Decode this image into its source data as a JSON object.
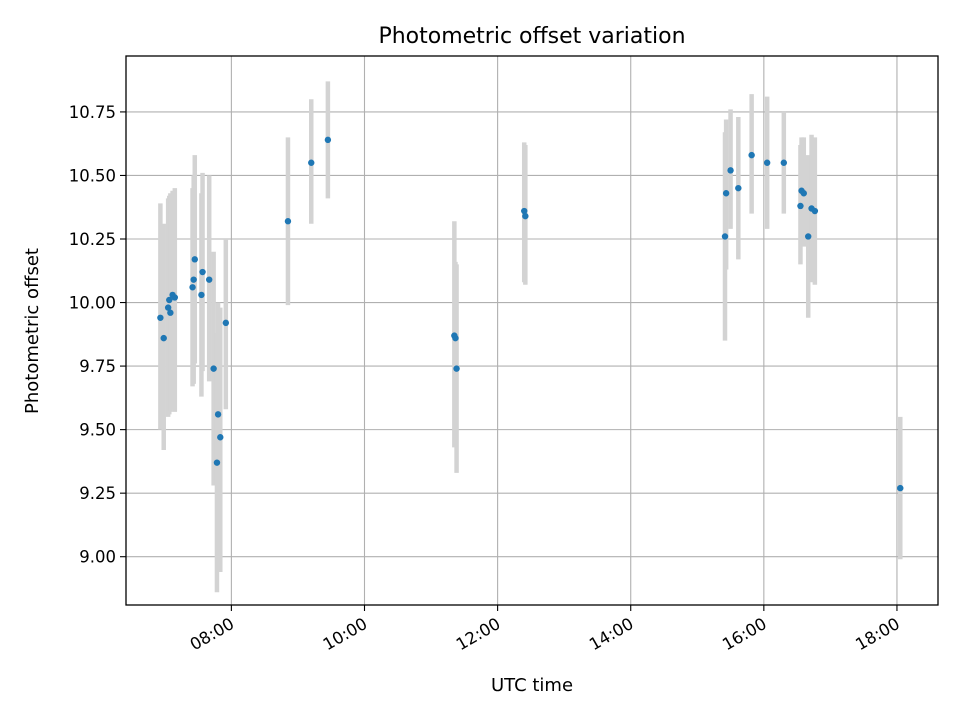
{
  "chart_data": {
    "type": "scatter",
    "title": "Photometric offset variation",
    "xlabel": "UTC time",
    "ylabel": "Photometric offset",
    "x_ticks": [
      "08:00",
      "10:00",
      "12:00",
      "14:00",
      "16:00",
      "18:00"
    ],
    "y_ticks": [
      "9.00",
      "9.25",
      "9.50",
      "9.75",
      "10.00",
      "10.25",
      "10.50",
      "10.75"
    ],
    "xlim": [
      "06:25",
      "18:37"
    ],
    "ylim": [
      8.81,
      10.97
    ],
    "grid": true,
    "colors": {
      "points": "#1f77b4",
      "error_bars": "#d3d3d3"
    },
    "series": [
      {
        "points": [
          {
            "x": "06:56",
            "y": 9.94,
            "err_low": 9.5,
            "err_high": 10.39
          },
          {
            "x": "06:59",
            "y": 9.86,
            "err_low": 9.42,
            "err_high": 10.31
          },
          {
            "x": "07:03",
            "y": 9.98,
            "err_low": 9.55,
            "err_high": 10.41
          },
          {
            "x": "07:04",
            "y": 10.01,
            "err_low": 9.56,
            "err_high": 10.42
          },
          {
            "x": "07:05",
            "y": 9.96,
            "err_low": 9.57,
            "err_high": 10.43
          },
          {
            "x": "07:07",
            "y": 10.03,
            "err_low": 9.58,
            "err_high": 10.44
          },
          {
            "x": "07:09",
            "y": 10.02,
            "err_low": 9.57,
            "err_high": 10.45
          },
          {
            "x": "07:25",
            "y": 10.06,
            "err_low": 9.67,
            "err_high": 10.45
          },
          {
            "x": "07:26",
            "y": 10.09,
            "err_low": 9.68,
            "err_high": 10.5
          },
          {
            "x": "07:27",
            "y": 10.17,
            "err_low": 9.76,
            "err_high": 10.58
          },
          {
            "x": "07:33",
            "y": 10.03,
            "err_low": 9.63,
            "err_high": 10.43
          },
          {
            "x": "07:34",
            "y": 10.12,
            "err_low": 9.73,
            "err_high": 10.51
          },
          {
            "x": "07:40",
            "y": 10.09,
            "err_low": 9.69,
            "err_high": 10.5
          },
          {
            "x": "07:44",
            "y": 9.74,
            "err_low": 9.28,
            "err_high": 10.2
          },
          {
            "x": "07:47",
            "y": 9.37,
            "err_low": 8.86,
            "err_high": 9.88
          },
          {
            "x": "07:48",
            "y": 9.56,
            "err_low": 9.12,
            "err_high": 10.0
          },
          {
            "x": "07:50",
            "y": 9.47,
            "err_low": 8.94,
            "err_high": 9.98
          },
          {
            "x": "07:55",
            "y": 9.92,
            "err_low": 9.58,
            "err_high": 10.25
          },
          {
            "x": "08:51",
            "y": 10.32,
            "err_low": 9.99,
            "err_high": 10.65
          },
          {
            "x": "09:12",
            "y": 10.55,
            "err_low": 10.31,
            "err_high": 10.8
          },
          {
            "x": "09:27",
            "y": 10.64,
            "err_low": 10.41,
            "err_high": 10.87
          },
          {
            "x": "11:21",
            "y": 9.87,
            "err_low": 9.43,
            "err_high": 10.32
          },
          {
            "x": "11:22",
            "y": 9.86,
            "err_low": 9.56,
            "err_high": 10.16
          },
          {
            "x": "11:23",
            "y": 9.74,
            "err_low": 9.33,
            "err_high": 10.15
          },
          {
            "x": "12:24",
            "y": 10.36,
            "err_low": 10.08,
            "err_high": 10.63
          },
          {
            "x": "12:25",
            "y": 10.34,
            "err_low": 10.07,
            "err_high": 10.62
          },
          {
            "x": "15:25",
            "y": 10.26,
            "err_low": 9.85,
            "err_high": 10.67
          },
          {
            "x": "15:26",
            "y": 10.43,
            "err_low": 10.13,
            "err_high": 10.72
          },
          {
            "x": "15:30",
            "y": 10.52,
            "err_low": 10.29,
            "err_high": 10.76
          },
          {
            "x": "15:37",
            "y": 10.45,
            "err_low": 10.17,
            "err_high": 10.73
          },
          {
            "x": "15:49",
            "y": 10.58,
            "err_low": 10.35,
            "err_high": 10.82
          },
          {
            "x": "16:03",
            "y": 10.55,
            "err_low": 10.29,
            "err_high": 10.81
          },
          {
            "x": "16:18",
            "y": 10.55,
            "err_low": 10.35,
            "err_high": 10.75
          },
          {
            "x": "16:33",
            "y": 10.38,
            "err_low": 10.15,
            "err_high": 10.62
          },
          {
            "x": "16:34",
            "y": 10.44,
            "err_low": 10.23,
            "err_high": 10.65
          },
          {
            "x": "16:36",
            "y": 10.43,
            "err_low": 10.22,
            "err_high": 10.65
          },
          {
            "x": "16:40",
            "y": 10.26,
            "err_low": 9.94,
            "err_high": 10.58
          },
          {
            "x": "16:43",
            "y": 10.37,
            "err_low": 10.08,
            "err_high": 10.66
          },
          {
            "x": "16:46",
            "y": 10.36,
            "err_low": 10.07,
            "err_high": 10.65
          },
          {
            "x": "18:03",
            "y": 9.27,
            "err_low": 8.99,
            "err_high": 9.55
          }
        ]
      }
    ]
  }
}
